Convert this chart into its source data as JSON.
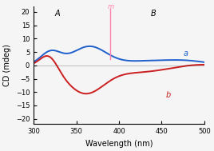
{
  "title": "",
  "xlabel": "Wavelength (nm)",
  "ylabel": "CD (mdeg)",
  "xlim": [
    300,
    500
  ],
  "ylim": [
    -22,
    22
  ],
  "xticks": [
    300,
    350,
    400,
    450,
    500
  ],
  "yticks": [
    -20,
    -15,
    -10,
    -5,
    0,
    5,
    10,
    15,
    20
  ],
  "curve_a_color": "#2060cc",
  "curve_b_color": "#cc2020",
  "label_a": "a",
  "label_b": "b",
  "bg_color": "#f5f5f5",
  "mirror_line_color": "#ff80b0",
  "mirror_label": "m"
}
